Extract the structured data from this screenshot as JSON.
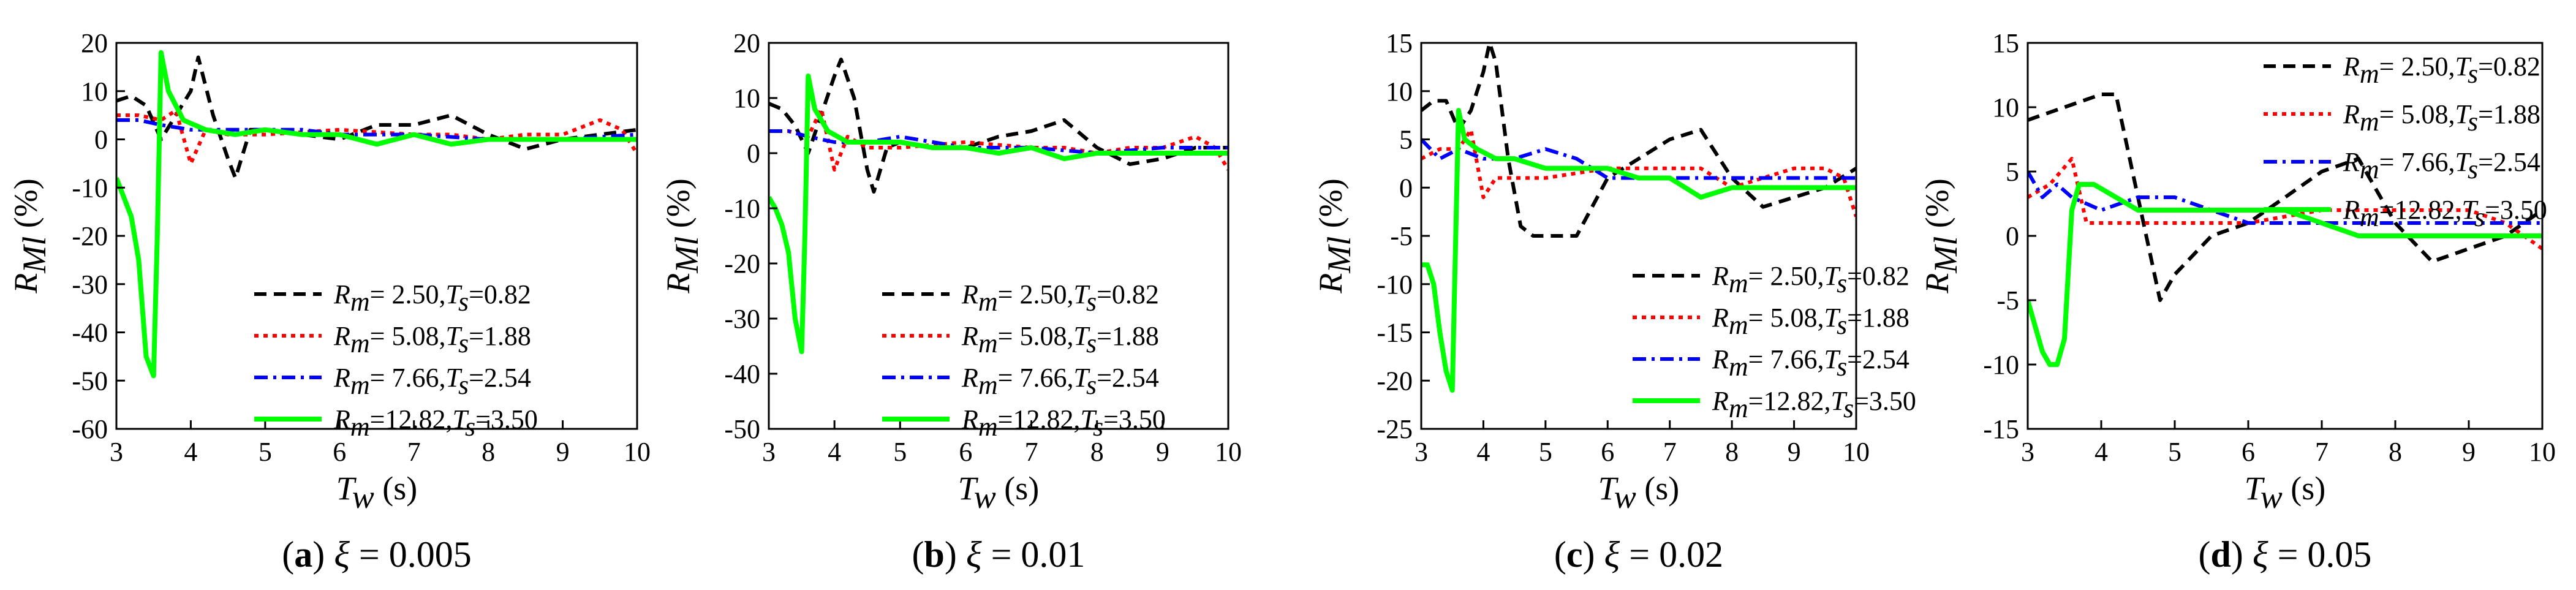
{
  "figure": {
    "legend_labels": [
      {
        "pre": "R",
        "sub": "m",
        "mid": "= 2.50,",
        "pre2": "T",
        "sub2": "s",
        "post": "=0.82"
      },
      {
        "pre": "R",
        "sub": "m",
        "mid": "= 5.08,",
        "pre2": "T",
        "sub2": "s",
        "post": "=1.88"
      },
      {
        "pre": "R",
        "sub": "m",
        "mid": "= 7.66,",
        "pre2": "T",
        "sub2": "s",
        "post": "=2.54"
      },
      {
        "pre": "R",
        "sub": "m",
        "mid": "=12.82,",
        "pre2": "T",
        "sub2": "s",
        "post": "=3.50"
      }
    ],
    "series_styles": [
      {
        "color": "#000000",
        "dash": "20,12",
        "width": 6
      },
      {
        "color": "#ff0000",
        "dash": "7,8",
        "width": 6
      },
      {
        "color": "#0000ff",
        "dash": "22,9,5,9",
        "width": 6
      },
      {
        "color": "#00ff00",
        "dash": "",
        "width": 8
      }
    ],
    "x_label": {
      "main": "T",
      "sub": "w",
      "unit": " (s)"
    },
    "y_label": {
      "main": "R",
      "sub": "Ml",
      "unit": " (%)"
    }
  },
  "chart_data": [
    {
      "type": "line",
      "caption": {
        "letter": "(a)",
        "xi": "ξ",
        "text": " = 0.005"
      },
      "xlim": [
        3,
        10
      ],
      "ylim": [
        -60,
        20
      ],
      "xticks": [
        3,
        4,
        5,
        6,
        7,
        8,
        9,
        10
      ],
      "yticks": [
        -60,
        -50,
        -40,
        -30,
        -20,
        -10,
        0,
        10,
        20
      ],
      "legend_position": "lower-right",
      "series": [
        {
          "name": "Rm=2.50, Ts=0.82",
          "x": [
            3,
            3.2,
            3.4,
            3.6,
            3.8,
            4.0,
            4.1,
            4.3,
            4.5,
            4.6,
            4.8,
            5.0,
            5.5,
            6.0,
            6.5,
            7.0,
            7.5,
            8.0,
            8.5,
            9.0,
            9.5,
            10
          ],
          "y": [
            8,
            9,
            7,
            0,
            5,
            10,
            17,
            5,
            -4,
            -8,
            2,
            2,
            1,
            0,
            3,
            3,
            5,
            1,
            -2,
            0,
            1,
            2
          ]
        },
        {
          "name": "Rm=5.08, Ts=1.88",
          "x": [
            3,
            3.3,
            3.6,
            3.8,
            4.0,
            4.2,
            4.5,
            5.0,
            6.0,
            7.0,
            7.5,
            8.0,
            8.5,
            9.0,
            9.5,
            9.8,
            10
          ],
          "y": [
            5,
            5,
            4,
            6,
            -5,
            2,
            1,
            1,
            2,
            1,
            1,
            0,
            1,
            1,
            4,
            2,
            -3
          ]
        },
        {
          "name": "Rm=7.66, Ts=2.54",
          "x": [
            3,
            3.3,
            3.6,
            4.0,
            4.5,
            5.0,
            5.5,
            6.0,
            7.0,
            8.0,
            9.0,
            10
          ],
          "y": [
            4,
            4,
            3,
            2,
            2,
            2,
            2,
            1,
            1,
            0,
            0,
            1
          ]
        },
        {
          "name": "Rm=12.82, Ts=3.50",
          "x": [
            3,
            3.1,
            3.2,
            3.3,
            3.4,
            3.5,
            3.55,
            3.6,
            3.7,
            3.9,
            4.2,
            4.6,
            5.0,
            5.5,
            6.0,
            6.5,
            7.0,
            7.5,
            8.0,
            9.0,
            10
          ],
          "y": [
            -8,
            -12,
            -16,
            -25,
            -45,
            -49,
            -20,
            18,
            10,
            4,
            2,
            1,
            2,
            1,
            1,
            -1,
            1,
            -1,
            0,
            0,
            0
          ]
        }
      ]
    },
    {
      "type": "line",
      "caption": {
        "letter": "(b)",
        "xi": "ξ",
        "text": " = 0.01"
      },
      "xlim": [
        3,
        10
      ],
      "ylim": [
        -50,
        20
      ],
      "xticks": [
        3,
        4,
        5,
        6,
        7,
        8,
        9,
        10
      ],
      "yticks": [
        -50,
        -40,
        -30,
        -20,
        -10,
        0,
        10,
        20
      ],
      "legend_position": "lower-right",
      "series": [
        {
          "name": "Rm=2.50, Ts=0.82",
          "x": [
            3,
            3.2,
            3.4,
            3.6,
            3.8,
            4.0,
            4.1,
            4.3,
            4.5,
            4.6,
            4.8,
            5.0,
            5.5,
            6.0,
            6.5,
            7.0,
            7.5,
            8.0,
            8.5,
            9.0,
            9.5,
            10
          ],
          "y": [
            9,
            8,
            5,
            0,
            7,
            14,
            17,
            10,
            -3,
            -7,
            1,
            2,
            1,
            1,
            3,
            4,
            6,
            1,
            -2,
            -1,
            1,
            1
          ]
        },
        {
          "name": "Rm=5.08, Ts=1.88",
          "x": [
            3,
            3.3,
            3.6,
            3.8,
            4.0,
            4.2,
            4.5,
            5.0,
            6.0,
            7.0,
            7.5,
            8.0,
            8.5,
            9.0,
            9.5,
            9.8,
            10
          ],
          "y": [
            4,
            4,
            3,
            8,
            -3,
            3,
            1,
            1,
            2,
            1,
            1,
            0,
            1,
            1,
            3,
            1,
            -3
          ]
        },
        {
          "name": "Rm=7.66, Ts=2.54",
          "x": [
            3,
            3.3,
            3.6,
            4.0,
            4.5,
            5.0,
            5.5,
            6.0,
            7.0,
            8.0,
            9.0,
            10
          ],
          "y": [
            4,
            4,
            3,
            2,
            2,
            3,
            2,
            1,
            1,
            0,
            1,
            1
          ]
        },
        {
          "name": "Rm=12.82, Ts=3.50",
          "x": [
            3,
            3.1,
            3.2,
            3.3,
            3.4,
            3.5,
            3.55,
            3.6,
            3.7,
            3.9,
            4.2,
            4.6,
            5.0,
            5.5,
            6.0,
            6.5,
            7.0,
            7.5,
            8.0,
            9.0,
            10
          ],
          "y": [
            -8,
            -10,
            -13,
            -18,
            -30,
            -36,
            -15,
            14,
            8,
            4,
            2,
            2,
            2,
            1,
            1,
            0,
            1,
            -1,
            0,
            0,
            0
          ]
        }
      ]
    },
    {
      "type": "line",
      "caption": {
        "letter": "(c)",
        "xi": "ξ",
        "text": " = 0.02"
      },
      "xlim": [
        3,
        10
      ],
      "ylim": [
        -25,
        15
      ],
      "xticks": [
        3,
        4,
        5,
        6,
        7,
        8,
        9,
        10
      ],
      "yticks": [
        -25,
        -20,
        -15,
        -10,
        -5,
        0,
        5,
        10,
        15
      ],
      "legend_position": "lower-right",
      "series": [
        {
          "name": "Rm=2.50, Ts=0.82",
          "x": [
            3,
            3.2,
            3.4,
            3.6,
            3.8,
            4.0,
            4.1,
            4.2,
            4.4,
            4.6,
            4.8,
            5.0,
            5.5,
            6.0,
            6.5,
            7.0,
            7.5,
            8.0,
            8.5,
            9.0,
            9.5,
            10
          ],
          "y": [
            8,
            9,
            9,
            6,
            8,
            12,
            15,
            13,
            3,
            -4,
            -5,
            -5,
            -5,
            1,
            3,
            5,
            6,
            1,
            -2,
            -1,
            0,
            2
          ]
        },
        {
          "name": "Rm=5.08, Ts=1.88",
          "x": [
            3,
            3.3,
            3.6,
            3.8,
            4.0,
            4.2,
            4.5,
            5.0,
            6.0,
            7.0,
            7.5,
            8.0,
            8.5,
            9.0,
            9.5,
            9.8,
            10
          ],
          "y": [
            3,
            4,
            4,
            6,
            -1,
            1,
            1,
            1,
            2,
            2,
            2,
            0,
            1,
            2,
            2,
            1,
            -3
          ]
        },
        {
          "name": "Rm=7.66, Ts=2.54",
          "x": [
            3,
            3.3,
            3.6,
            4.0,
            4.5,
            5.0,
            5.5,
            6.0,
            6.5,
            7.0,
            8.0,
            9.0,
            10
          ],
          "y": [
            5,
            3,
            4,
            3,
            3,
            4,
            3,
            1,
            1,
            1,
            1,
            1,
            1
          ]
        },
        {
          "name": "Rm=12.82, Ts=3.50",
          "x": [
            3,
            3.1,
            3.2,
            3.3,
            3.4,
            3.5,
            3.6,
            3.7,
            3.9,
            4.2,
            4.5,
            5.0,
            5.5,
            6.0,
            6.5,
            7.0,
            7.5,
            8.0,
            9.0,
            10
          ],
          "y": [
            -8,
            -8,
            -10,
            -15,
            -19,
            -21,
            8,
            5,
            4,
            3,
            3,
            2,
            2,
            2,
            1,
            1,
            -1,
            0,
            0,
            0
          ]
        }
      ]
    },
    {
      "type": "line",
      "caption": {
        "letter": "(d)",
        "xi": "ξ",
        "text": " = 0.05"
      },
      "xlim": [
        3,
        10
      ],
      "ylim": [
        -15,
        15
      ],
      "xticks": [
        3,
        4,
        5,
        6,
        7,
        8,
        9,
        10
      ],
      "yticks": [
        -15,
        -10,
        -5,
        0,
        5,
        10,
        15
      ],
      "legend_position": "top-right",
      "series": [
        {
          "name": "Rm=2.50, Ts=0.82",
          "x": [
            3,
            3.5,
            4.0,
            4.2,
            4.5,
            4.8,
            5.0,
            5.5,
            6.0,
            6.5,
            7.0,
            7.5,
            8.0,
            8.5,
            9.0,
            9.5,
            10
          ],
          "y": [
            9,
            10,
            11,
            11,
            3,
            -5,
            -3,
            0,
            1,
            3,
            5,
            6,
            1,
            -2,
            -1,
            0,
            2
          ]
        },
        {
          "name": "Rm=5.08, Ts=1.88",
          "x": [
            3,
            3.3,
            3.6,
            3.8,
            4.0,
            4.5,
            5.0,
            6.0,
            7.0,
            7.5,
            8.0,
            8.5,
            9.0,
            9.5,
            10
          ],
          "y": [
            3,
            4,
            6,
            1,
            1,
            1,
            1,
            1,
            2,
            2,
            2,
            2,
            2,
            1,
            -1
          ]
        },
        {
          "name": "Rm=7.66, Ts=2.54",
          "x": [
            3,
            3.2,
            3.4,
            3.6,
            4.0,
            4.5,
            4.8,
            5.0,
            5.5,
            6.0,
            7.0,
            8.0,
            9.0,
            10
          ],
          "y": [
            5,
            3,
            4,
            3,
            2,
            3,
            3,
            3,
            2,
            1,
            1,
            1,
            1,
            1
          ]
        },
        {
          "name": "Rm=12.82, Ts=3.50",
          "x": [
            3,
            3.1,
            3.2,
            3.3,
            3.4,
            3.5,
            3.6,
            3.7,
            3.9,
            4.2,
            4.5,
            5.0,
            5.5,
            6.0,
            6.5,
            7.0,
            7.5,
            8.0,
            9.0,
            10
          ],
          "y": [
            -5,
            -7,
            -9,
            -10,
            -10,
            -8,
            2,
            4,
            4,
            3,
            2,
            2,
            2,
            2,
            2,
            1,
            0,
            0,
            0,
            0
          ]
        }
      ]
    }
  ]
}
